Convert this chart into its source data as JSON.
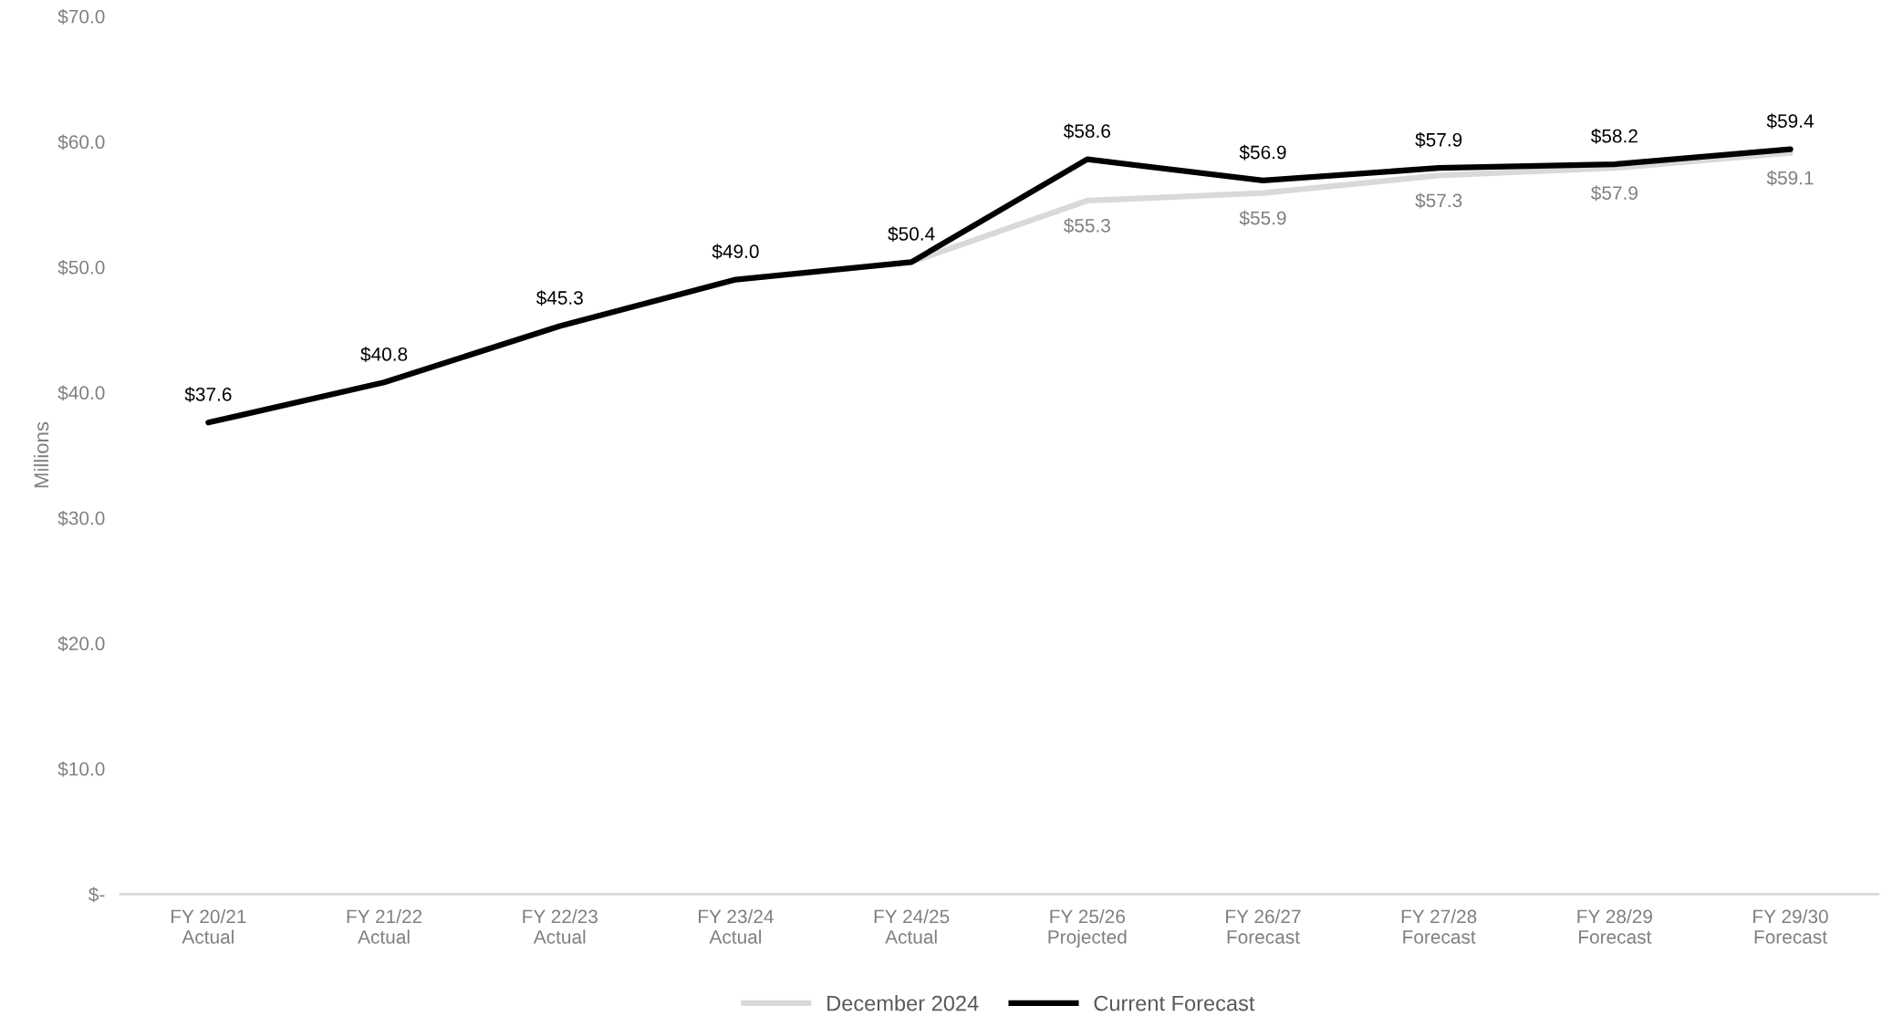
{
  "chart_data": {
    "type": "line",
    "ylabel": "Millions",
    "categories": [
      "FY 20/21\nActual",
      "FY 21/22\nActual",
      "FY 22/23\nActual",
      "FY 23/24\nActual",
      "FY 24/25\nActual",
      "FY 25/26\nProjected",
      "FY 26/27\nForecast",
      "FY 27/28\nForecast",
      "FY 28/29\nForecast",
      "FY 29/30\nForecast"
    ],
    "series": [
      {
        "name": "December 2024",
        "color": "#d9d9d9",
        "values": [
          null,
          null,
          null,
          null,
          50.4,
          55.3,
          55.9,
          57.3,
          57.9,
          59.1
        ],
        "value_labels": [
          null,
          null,
          null,
          null,
          null,
          "$55.3",
          "$55.9",
          "$57.3",
          "$57.9",
          "$59.1"
        ]
      },
      {
        "name": "Current Forecast",
        "color": "#000000",
        "values": [
          37.6,
          40.8,
          45.3,
          49.0,
          50.4,
          58.6,
          56.9,
          57.9,
          58.2,
          59.4
        ],
        "value_labels": [
          "$37.6",
          "$40.8",
          "$45.3",
          "$49.0",
          "$50.4",
          "$58.6",
          "$56.9",
          "$57.9",
          "$58.2",
          "$59.4"
        ]
      }
    ],
    "ylim": [
      0,
      70
    ],
    "yticks": [
      {
        "value": 0,
        "label": "$-"
      },
      {
        "value": 10,
        "label": "$10.0"
      },
      {
        "value": 20,
        "label": "$20.0"
      },
      {
        "value": 30,
        "label": "$30.0"
      },
      {
        "value": 40,
        "label": "$40.0"
      },
      {
        "value": 50,
        "label": "$50.0"
      },
      {
        "value": 60,
        "label": "$60.0"
      },
      {
        "value": 70,
        "label": "$70.0"
      }
    ],
    "grid": false,
    "legend": "bottom",
    "marker": "none",
    "line_style": "solid"
  }
}
